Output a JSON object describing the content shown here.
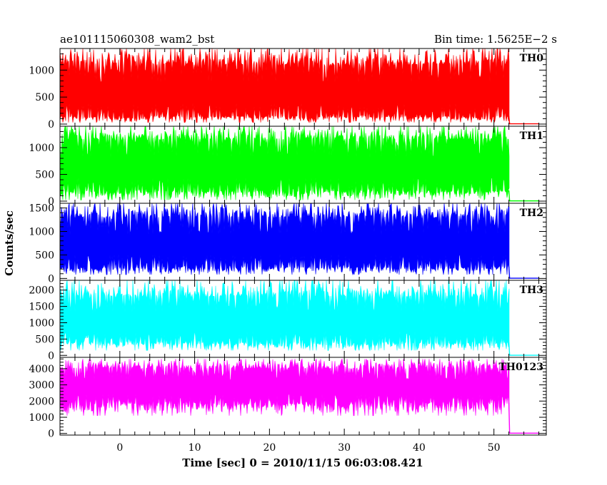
{
  "chart_data": {
    "type": "line",
    "title": "ae101115060308_wam2_bst",
    "subtitle": "Bin time: 1.5625E−2 s",
    "xlabel": "Time [sec] 0 = 2010/11/15 06:03:08.421",
    "ylabel": "Counts/sec",
    "xlim": [
      -8,
      57
    ],
    "x_ticks": [
      0,
      10,
      20,
      30,
      40,
      50
    ],
    "grid": false,
    "description": "Stacked light curves; burst data spans about -8 s to 52 s, then drops to zero until about 56 s.",
    "panels": [
      {
        "name": "TH0",
        "color": "#ff0000",
        "ylim": [
          -40,
          1400
        ],
        "y_ticks": [
          0,
          500,
          1000
        ],
        "x_start": -8,
        "x_drop": 52,
        "x_end": 56,
        "band": {
          "typical_low": 150,
          "typical_high": 1100,
          "min": 30,
          "max": 1400
        },
        "after_level": 5
      },
      {
        "name": "TH1",
        "color": "#00ff00",
        "ylim": [
          -40,
          1400
        ],
        "y_ticks": [
          0,
          500,
          1000
        ],
        "x_start": -8,
        "x_drop": 52,
        "x_end": 56,
        "band": {
          "typical_low": 200,
          "typical_high": 1150,
          "min": 20,
          "max": 1400
        },
        "after_level": 5
      },
      {
        "name": "TH2",
        "color": "#0000ff",
        "ylim": [
          -40,
          1600
        ],
        "y_ticks": [
          0,
          500,
          1000,
          1500
        ],
        "x_start": -8,
        "x_drop": 52,
        "x_end": 56,
        "band": {
          "typical_low": 250,
          "typical_high": 1300,
          "min": 80,
          "max": 1600
        },
        "after_level": 5
      },
      {
        "name": "TH3",
        "color": "#00ffff",
        "ylim": [
          -60,
          2300
        ],
        "y_ticks": [
          0,
          500,
          1000,
          1500,
          2000
        ],
        "x_start": -8,
        "x_drop": 52,
        "x_end": 56,
        "band": {
          "typical_low": 400,
          "typical_high": 1800,
          "min": 150,
          "max": 2300
        },
        "after_level": 5
      },
      {
        "name": "TH0123",
        "color": "#ff00ff",
        "ylim": [
          -100,
          4700
        ],
        "y_ticks": [
          0,
          1000,
          2000,
          3000,
          4000
        ],
        "x_start": -8,
        "x_drop": 52,
        "x_end": 56,
        "band": {
          "typical_low": 1900,
          "typical_high": 4000,
          "min": 1100,
          "max": 4600
        },
        "after_level": 20
      }
    ]
  }
}
